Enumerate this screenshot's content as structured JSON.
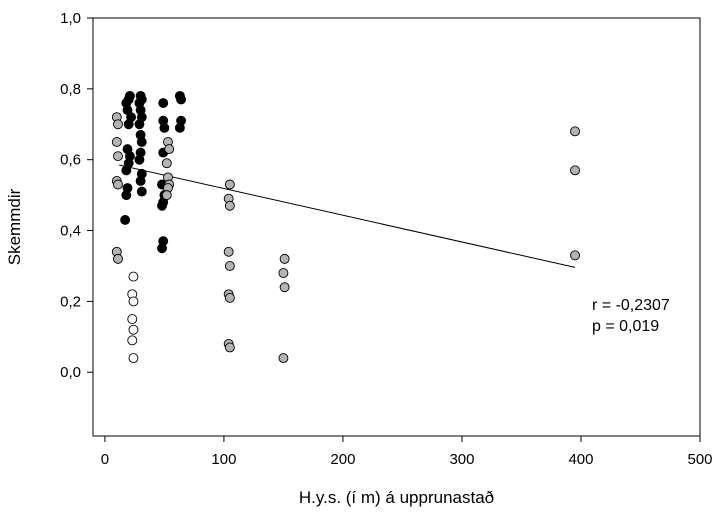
{
  "chart_data": {
    "type": "scatter",
    "title": "",
    "xlabel": "H.y.s. (í m) á upprunastað",
    "ylabel": "Skemmdir",
    "xlim": [
      -10,
      500
    ],
    "ylim": [
      -0.18,
      1.0
    ],
    "x_ticks": [
      0,
      100,
      200,
      300,
      400,
      500
    ],
    "x_tick_labels": [
      "0",
      "100",
      "200",
      "300",
      "400",
      "500"
    ],
    "y_ticks": [
      0.0,
      0.2,
      0.4,
      0.6,
      0.8,
      1.0
    ],
    "y_tick_labels": [
      "0,0",
      "0,2",
      "0,4",
      "0,6",
      "0,8",
      "1,0"
    ],
    "grid": false,
    "colors": {
      "black": "#000000",
      "grey": "#b3b3b3",
      "white": "#ffffff",
      "outline": "#000000"
    },
    "series": [
      {
        "color": "black",
        "points": [
          [
            18,
            0.76
          ],
          [
            20,
            0.77
          ],
          [
            21,
            0.78
          ],
          [
            19,
            0.74
          ],
          [
            22,
            0.72
          ],
          [
            20,
            0.7
          ],
          [
            19,
            0.63
          ],
          [
            21,
            0.61
          ],
          [
            20,
            0.59
          ],
          [
            18,
            0.57
          ],
          [
            19,
            0.52
          ],
          [
            18,
            0.5
          ],
          [
            17,
            0.43
          ],
          [
            29,
            0.76
          ],
          [
            30,
            0.78
          ],
          [
            31,
            0.77
          ],
          [
            30,
            0.74
          ],
          [
            31,
            0.72
          ],
          [
            29,
            0.7
          ],
          [
            30,
            0.67
          ],
          [
            31,
            0.65
          ],
          [
            30,
            0.62
          ],
          [
            29,
            0.6
          ],
          [
            31,
            0.56
          ],
          [
            30,
            0.54
          ],
          [
            31,
            0.51
          ],
          [
            49,
            0.76
          ],
          [
            49,
            0.71
          ],
          [
            50,
            0.69
          ],
          [
            49,
            0.62
          ],
          [
            48,
            0.53
          ],
          [
            50,
            0.5
          ],
          [
            49,
            0.48
          ],
          [
            48,
            0.47
          ],
          [
            49,
            0.37
          ],
          [
            48,
            0.35
          ],
          [
            63,
            0.78
          ],
          [
            64,
            0.77
          ],
          [
            64,
            0.71
          ],
          [
            63,
            0.69
          ]
        ]
      },
      {
        "color": "grey",
        "points": [
          [
            10,
            0.72
          ],
          [
            11,
            0.7
          ],
          [
            10,
            0.65
          ],
          [
            11,
            0.61
          ],
          [
            10,
            0.54
          ],
          [
            11,
            0.53
          ],
          [
            10,
            0.34
          ],
          [
            11,
            0.32
          ],
          [
            53,
            0.65
          ],
          [
            54,
            0.63
          ],
          [
            52,
            0.59
          ],
          [
            53,
            0.55
          ],
          [
            54,
            0.53
          ],
          [
            53,
            0.52
          ],
          [
            52,
            0.5
          ],
          [
            105,
            0.53
          ],
          [
            104,
            0.49
          ],
          [
            105,
            0.47
          ],
          [
            104,
            0.34
          ],
          [
            105,
            0.3
          ],
          [
            104,
            0.22
          ],
          [
            105,
            0.21
          ],
          [
            104,
            0.08
          ],
          [
            105,
            0.07
          ],
          [
            151,
            0.32
          ],
          [
            150,
            0.28
          ],
          [
            151,
            0.24
          ],
          [
            150,
            0.04
          ],
          [
            395,
            0.68
          ],
          [
            395,
            0.57
          ],
          [
            395,
            0.33
          ]
        ]
      },
      {
        "color": "white",
        "points": [
          [
            24,
            0.27
          ],
          [
            23,
            0.22
          ],
          [
            24,
            0.2
          ],
          [
            23,
            0.15
          ],
          [
            24,
            0.12
          ],
          [
            23,
            0.09
          ],
          [
            24,
            0.04
          ]
        ]
      }
    ],
    "trend_line": {
      "x": [
        12,
        395
      ],
      "y": [
        0.585,
        0.296
      ]
    },
    "annotations": [
      "r = -0,2307",
      "p = 0,019"
    ]
  }
}
